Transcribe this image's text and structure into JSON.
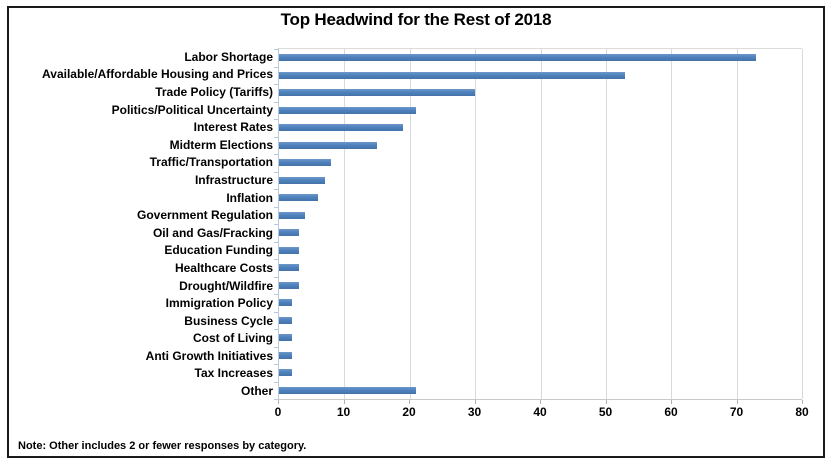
{
  "title": "Top Headwind for the Rest of 2018",
  "note": "Note: Other includes 2 or fewer responses by category.",
  "chart_data": {
    "type": "bar",
    "orientation": "horizontal",
    "title": "Top Headwind for the Rest of 2018",
    "categories": [
      "Labor Shortage",
      "Available/Affordable Housing and Prices",
      "Trade Policy (Tariffs)",
      "Politics/Political Uncertainty",
      "Interest Rates",
      "Midterm Elections",
      "Traffic/Transportation",
      "Infrastructure",
      "Inflation",
      "Government Regulation",
      "Oil and Gas/Fracking",
      "Education Funding",
      "Healthcare Costs",
      "Drought/Wildfire",
      "Immigration Policy",
      "Business Cycle",
      "Cost of Living",
      "Anti Growth Initiatives",
      "Tax Increases",
      "Other"
    ],
    "values": [
      73,
      53,
      30,
      21,
      19,
      15,
      8,
      7,
      6,
      4,
      3,
      3,
      3,
      3,
      2,
      2,
      2,
      2,
      2,
      21
    ],
    "xlim": [
      0,
      80
    ],
    "x_ticks": [
      0,
      10,
      20,
      30,
      40,
      50,
      60,
      70,
      80
    ],
    "grid": true,
    "legend": "none",
    "bar_color": "#4f81bd",
    "gridline_color": "#d9d9d9",
    "annotation": "Note: Other includes 2 or fewer responses by category."
  }
}
